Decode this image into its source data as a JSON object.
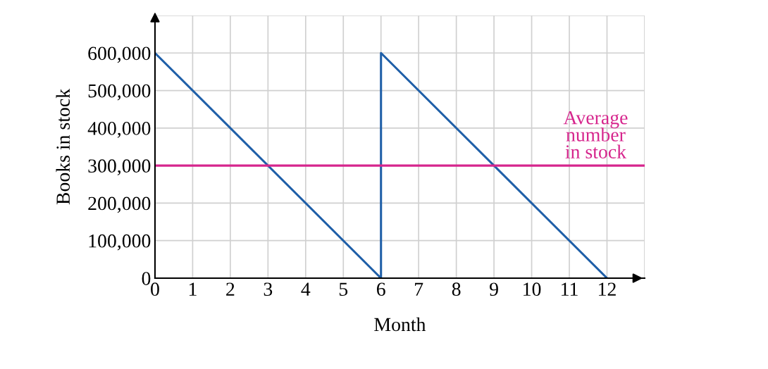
{
  "chart_data": {
    "type": "line",
    "xlabel": "Month",
    "ylabel": "Books in stock",
    "series": [
      {
        "color": "#1f5fa8",
        "x": [
          0,
          6,
          6,
          12
        ],
        "values": [
          600000,
          0,
          600000,
          0
        ]
      }
    ],
    "xlim": [
      0,
      13
    ],
    "xticks": [
      0,
      1,
      2,
      3,
      4,
      5,
      6,
      7,
      8,
      9,
      10,
      11,
      12
    ],
    "ylim": [
      0,
      700000
    ],
    "yticks": [
      0,
      {
        "value": 100000,
        "label": "100,000"
      },
      {
        "value": 200000,
        "label": "200,000"
      },
      {
        "value": 300000,
        "label": "300,000"
      },
      {
        "value": 400000,
        "label": "400,000"
      },
      {
        "value": 500000,
        "label": "500,000"
      },
      {
        "value": 600000,
        "label": "600,000"
      }
    ],
    "ref_lines": [
      {
        "axis": "y",
        "value": 300000,
        "label": "Average\nnumber\nin stock",
        "color": "#d6268d"
      }
    ],
    "grid": true,
    "marker": "none",
    "line_style": "solid"
  }
}
